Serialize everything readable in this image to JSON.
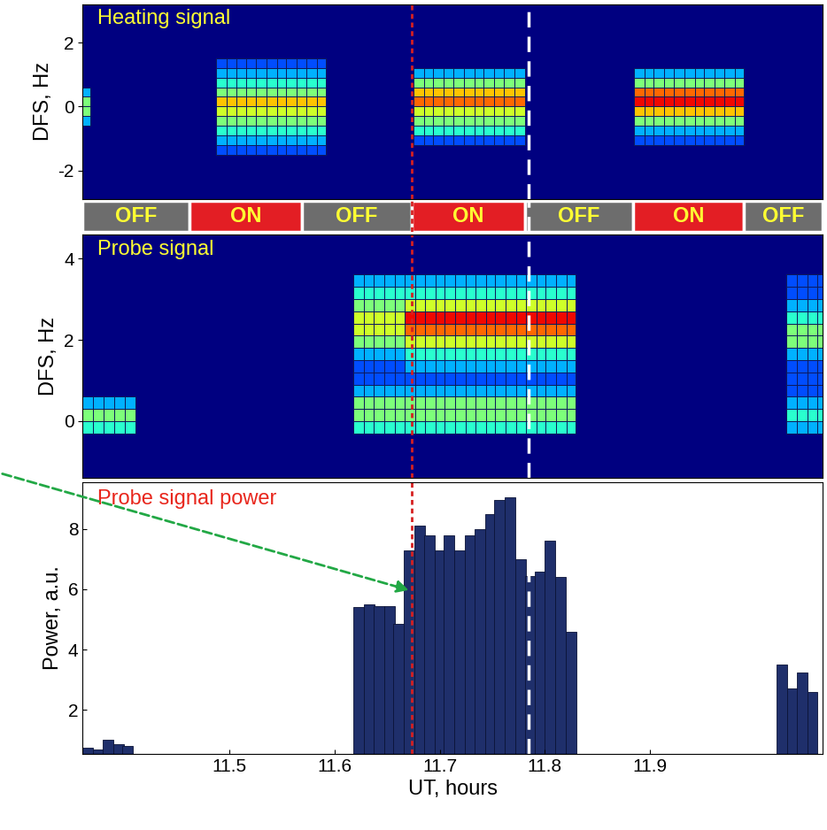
{
  "chart_data": [
    {
      "type": "heatmap",
      "title": "Heating signal",
      "ylabel": "DFS, Hz",
      "xlim": [
        11.36,
        12.065
      ],
      "ylim": [
        -2.9,
        3.2
      ],
      "yticks": [
        -2,
        0,
        2
      ],
      "tick_labels": "y",
      "zlim": [
        0,
        10
      ],
      "blocks": [
        {
          "t": [
            11.36,
            11.367
          ],
          "f": [
            -0.6,
            -0.3,
            0,
            0.3,
            0.6
          ],
          "z": [
            3,
            5,
            5,
            3
          ]
        },
        {
          "t": [
            11.487,
            11.497,
            11.506,
            11.516,
            11.525,
            11.535,
            11.545,
            11.554,
            11.564,
            11.573,
            11.583,
            11.592
          ],
          "f": [
            -1.5,
            -1.2,
            -0.9,
            -0.6,
            -0.3,
            0,
            0.3,
            0.6,
            0.9,
            1.2,
            1.5
          ],
          "z": [
            2,
            3,
            4,
            5,
            6,
            7,
            5,
            4,
            3,
            2
          ]
        },
        {
          "t": [
            11.675,
            11.685,
            11.694,
            11.704,
            11.713,
            11.723,
            11.733,
            11.742,
            11.752,
            11.761,
            11.771,
            11.781
          ],
          "f": [
            -1.2,
            -0.9,
            -0.6,
            -0.3,
            0,
            0.3,
            0.6,
            0.9,
            1.2
          ],
          "z": [
            2,
            4,
            5,
            6,
            8,
            7,
            5,
            3
          ]
        },
        {
          "t": [
            11.885,
            11.895,
            11.904,
            11.914,
            11.923,
            11.933,
            11.943,
            11.952,
            11.962,
            11.971,
            11.981,
            11.99
          ],
          "f": [
            -1.2,
            -0.9,
            -0.6,
            -0.3,
            0,
            0.3,
            0.6,
            0.9,
            1.2
          ],
          "z": [
            2,
            3,
            5,
            7,
            9,
            8,
            5,
            3
          ]
        }
      ],
      "vlines": [
        {
          "x": 11.673,
          "color": "#d62020",
          "line_style": "dotted"
        },
        {
          "x": 11.785,
          "color": "#ffffff",
          "line_style": "dashed"
        }
      ]
    },
    {
      "type": "timeline",
      "xlim": [
        11.36,
        12.065
      ],
      "tick_labels": false,
      "segments": [
        {
          "label": "OFF",
          "start": 11.36,
          "end": 11.462,
          "color": "#6d6d6d"
        },
        {
          "label": "ON",
          "start": 11.462,
          "end": 11.569,
          "color": "#e31e24"
        },
        {
          "label": "OFF",
          "start": 11.569,
          "end": 11.673,
          "color": "#6d6d6d"
        },
        {
          "label": "ON",
          "start": 11.673,
          "end": 11.781,
          "color": "#e31e24"
        },
        {
          "label": "OFF",
          "start": 11.781,
          "end": 11.884,
          "color": "#6d6d6d"
        },
        {
          "label": "ON",
          "start": 11.884,
          "end": 11.99,
          "color": "#e31e24"
        },
        {
          "label": "OFF",
          "start": 11.99,
          "end": 12.065,
          "color": "#6d6d6d"
        }
      ],
      "vlines": [
        {
          "x": 11.673,
          "color": "#d62020",
          "line_style": "dotted"
        },
        {
          "x": 11.785,
          "color": "#ffffff",
          "line_style": "dashed"
        }
      ]
    },
    {
      "type": "heatmap",
      "title": "Probe signal",
      "ylabel": "DFS, Hz",
      "xlim": [
        11.36,
        12.065
      ],
      "ylim": [
        -1.4,
        4.6
      ],
      "yticks": [
        0,
        2,
        4
      ],
      "tick_labels": "y",
      "zlim": [
        0,
        10
      ],
      "blocks": [
        {
          "t": [
            11.36,
            11.37,
            11.38,
            11.39,
            11.4,
            11.41
          ],
          "f": [
            -0.3,
            0,
            0.3,
            0.6
          ],
          "z": [
            4,
            5,
            3
          ]
        },
        {
          "t": [
            11.618,
            11.628,
            11.637,
            11.647,
            11.657,
            11.667
          ],
          "f": [
            -0.3,
            0,
            0.3,
            0.6,
            0.9,
            1.2,
            1.5,
            1.8,
            2.1,
            2.4,
            2.7,
            3.0,
            3.3,
            3.6
          ],
          "z": [
            4,
            5,
            5,
            3,
            2,
            2,
            3,
            5,
            6,
            6,
            5,
            4,
            3
          ]
        },
        {
          "t": [
            11.667,
            11.677,
            11.686,
            11.696,
            11.705,
            11.715,
            11.725,
            11.734,
            11.744,
            11.753,
            11.763,
            11.773,
            11.782,
            11.792,
            11.801,
            11.811,
            11.821,
            11.829
          ],
          "f": [
            -0.3,
            0,
            0.3,
            0.6,
            0.9,
            1.2,
            1.5,
            1.8,
            2.1,
            2.4,
            2.7,
            3.0,
            3.3,
            3.6
          ],
          "z": [
            4,
            5,
            5,
            3,
            2,
            3,
            4,
            6,
            8,
            9,
            6,
            4,
            3
          ]
        },
        {
          "t": [
            12.03,
            12.04,
            12.05,
            12.06,
            12.065
          ],
          "f": [
            -0.3,
            0,
            0.3,
            0.6,
            0.9,
            1.2,
            1.5,
            1.8,
            2.1,
            2.4,
            2.7,
            3.0,
            3.3,
            3.6
          ],
          "z": [
            3,
            4,
            3,
            2,
            2,
            2,
            3,
            5,
            5,
            4,
            3,
            2,
            2
          ]
        }
      ],
      "vlines": [
        {
          "x": 11.673,
          "color": "#d62020",
          "line_style": "dotted"
        },
        {
          "x": 11.785,
          "color": "#ffffff",
          "line_style": "dashed"
        }
      ]
    },
    {
      "type": "bar",
      "title": "Probe signal power",
      "xlabel": "UT, hours",
      "ylabel": "Power, a.u.",
      "color": "#1f2f6b",
      "x": [
        11.365,
        11.375,
        11.384,
        11.394,
        11.403,
        11.623,
        11.633,
        11.642,
        11.652,
        11.661,
        11.671,
        11.681,
        11.69,
        11.7,
        11.709,
        11.719,
        11.729,
        11.738,
        11.748,
        11.757,
        11.767,
        11.777,
        11.786,
        11.796,
        11.805,
        11.815,
        11.825,
        12.026,
        12.036,
        12.045,
        12.055
      ],
      "values": [
        0.75,
        0.7,
        1.0,
        0.85,
        0.8,
        5.4,
        5.5,
        5.45,
        5.45,
        4.85,
        7.3,
        8.1,
        7.8,
        7.3,
        7.8,
        7.3,
        7.8,
        8.0,
        8.5,
        8.95,
        9.05,
        7.0,
        6.45,
        6.6,
        7.6,
        6.4,
        4.6,
        3.5,
        2.7,
        3.25,
        2.6
      ],
      "xlim": [
        11.36,
        12.065
      ],
      "ylim": [
        0.55,
        9.55
      ],
      "xticks": [
        11.5,
        11.6,
        11.7,
        11.8,
        11.9
      ],
      "yticks": [
        2,
        4,
        6,
        8
      ],
      "vlines": [
        {
          "x": 11.673,
          "color": "#d62020",
          "line_style": "dotted"
        },
        {
          "x": 11.785,
          "color": "#ffffff",
          "line_style": "dashed"
        }
      ]
    }
  ]
}
